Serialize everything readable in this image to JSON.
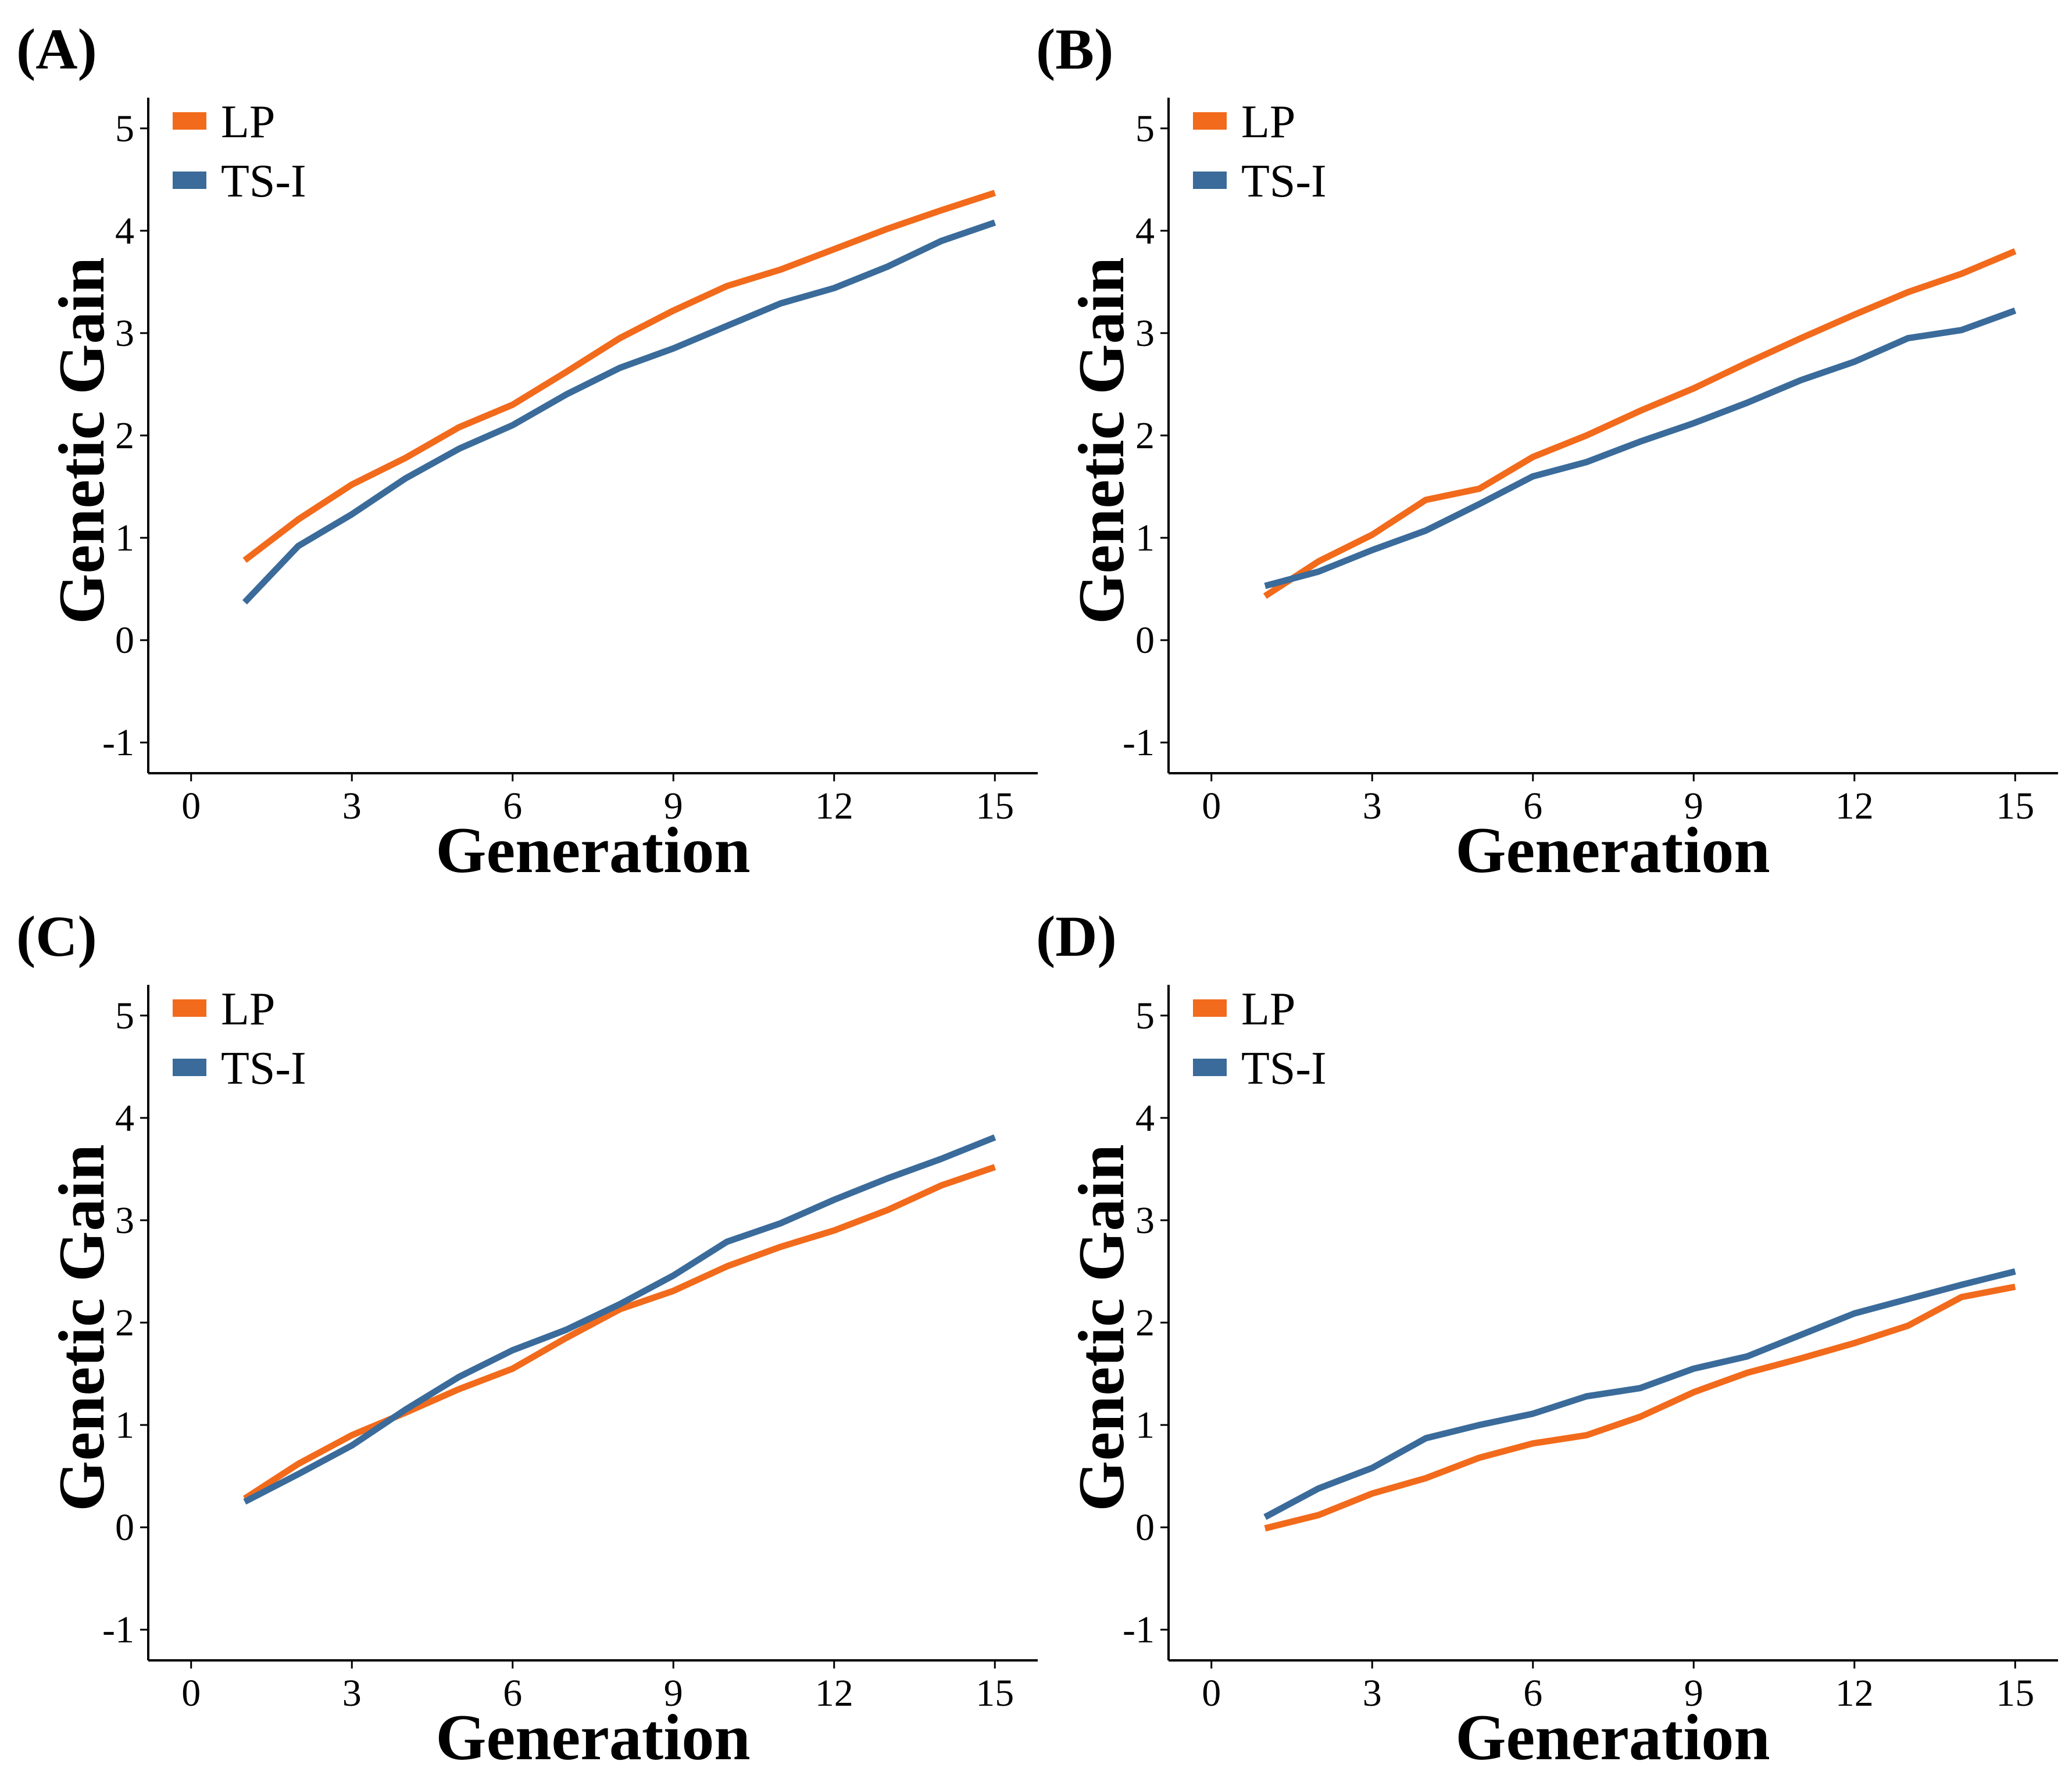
{
  "colors": {
    "LP": "#F26A1B",
    "TS-I": "#3A6B9A"
  },
  "chart_data": [
    {
      "type": "line",
      "panel_label": "(A)",
      "xlabel": "Generation",
      "ylabel": "Genetic Gain",
      "xlim": [
        -0.8,
        15.8
      ],
      "ylim": [
        -1.3,
        5.3
      ],
      "xticks": [
        0,
        3,
        6,
        9,
        12,
        15
      ],
      "xtick_labels": [
        "0",
        "3",
        "6",
        "9",
        "12",
        "15"
      ],
      "yticks": [
        -1,
        0,
        1,
        2,
        3,
        4,
        5
      ],
      "ytick_labels": [
        "-1",
        "0",
        "1",
        "2",
        "3",
        "4",
        "5"
      ],
      "legend_position": "top-left",
      "x": [
        1,
        2,
        3,
        4,
        5,
        6,
        7,
        8,
        9,
        10,
        11,
        12,
        13,
        14,
        15
      ],
      "series": [
        {
          "name": "LP",
          "values": [
            0.78,
            1.18,
            1.52,
            1.78,
            2.08,
            2.3,
            2.62,
            2.95,
            3.22,
            3.46,
            3.62,
            3.82,
            4.02,
            4.2,
            4.37
          ]
        },
        {
          "name": "TS-I",
          "values": [
            0.37,
            0.92,
            1.23,
            1.58,
            1.87,
            2.1,
            2.4,
            2.66,
            2.85,
            3.07,
            3.29,
            3.44,
            3.65,
            3.9,
            4.08
          ]
        }
      ]
    },
    {
      "type": "line",
      "panel_label": "(B)",
      "xlabel": "Generation",
      "ylabel": "Genetic Gain",
      "xlim": [
        -0.8,
        15.8
      ],
      "ylim": [
        -1.3,
        5.3
      ],
      "xticks": [
        0,
        3,
        6,
        9,
        12,
        15
      ],
      "xtick_labels": [
        "0",
        "3",
        "6",
        "9",
        "12",
        "15"
      ],
      "yticks": [
        -1,
        0,
        1,
        2,
        3,
        4,
        5
      ],
      "ytick_labels": [
        "-1",
        "0",
        "1",
        "2",
        "3",
        "4",
        "5"
      ],
      "legend_position": "top-left",
      "x": [
        1,
        2,
        3,
        4,
        5,
        6,
        7,
        8,
        9,
        10,
        11,
        12,
        13,
        14,
        15
      ],
      "series": [
        {
          "name": "LP",
          "values": [
            0.43,
            0.77,
            1.03,
            1.37,
            1.48,
            1.79,
            2.0,
            2.24,
            2.46,
            2.71,
            2.95,
            3.18,
            3.4,
            3.58,
            3.8
          ]
        },
        {
          "name": "TS-I",
          "values": [
            0.53,
            0.67,
            0.88,
            1.07,
            1.33,
            1.6,
            1.74,
            1.94,
            2.12,
            2.32,
            2.54,
            2.72,
            2.95,
            3.03,
            3.22
          ]
        }
      ]
    },
    {
      "type": "line",
      "panel_label": "(C)",
      "xlabel": "Generation",
      "ylabel": "Genetic Gain",
      "xlim": [
        -0.8,
        15.8
      ],
      "ylim": [
        -1.3,
        5.3
      ],
      "xticks": [
        0,
        3,
        6,
        9,
        12,
        15
      ],
      "xtick_labels": [
        "0",
        "3",
        "6",
        "9",
        "12",
        "15"
      ],
      "yticks": [
        -1,
        0,
        1,
        2,
        3,
        4,
        5
      ],
      "ytick_labels": [
        "-1",
        "0",
        "1",
        "2",
        "3",
        "4",
        "5"
      ],
      "legend_position": "top-left",
      "x": [
        1,
        2,
        3,
        4,
        5,
        6,
        7,
        8,
        9,
        10,
        11,
        12,
        13,
        14,
        15
      ],
      "series": [
        {
          "name": "LP",
          "values": [
            0.28,
            0.62,
            0.9,
            1.12,
            1.35,
            1.55,
            1.85,
            2.13,
            2.31,
            2.55,
            2.74,
            2.9,
            3.1,
            3.34,
            3.52
          ]
        },
        {
          "name": "TS-I",
          "values": [
            0.25,
            0.52,
            0.8,
            1.15,
            1.47,
            1.73,
            1.93,
            2.18,
            2.46,
            2.79,
            2.97,
            3.2,
            3.41,
            3.6,
            3.81
          ]
        }
      ]
    },
    {
      "type": "line",
      "panel_label": "(D)",
      "xlabel": "Generation",
      "ylabel": "Genetic Gain",
      "xlim": [
        -0.8,
        15.8
      ],
      "ylim": [
        -1.3,
        5.3
      ],
      "xticks": [
        0,
        3,
        6,
        9,
        12,
        15
      ],
      "xtick_labels": [
        "0",
        "3",
        "6",
        "9",
        "12",
        "15"
      ],
      "yticks": [
        -1,
        0,
        1,
        2,
        3,
        4,
        5
      ],
      "ytick_labels": [
        "-1",
        "0",
        "1",
        "2",
        "3",
        "4",
        "5"
      ],
      "legend_position": "top-left",
      "x": [
        1,
        2,
        3,
        4,
        5,
        6,
        7,
        8,
        9,
        10,
        11,
        12,
        13,
        14,
        15
      ],
      "series": [
        {
          "name": "LP",
          "values": [
            -0.01,
            0.12,
            0.33,
            0.48,
            0.68,
            0.82,
            0.9,
            1.08,
            1.32,
            1.51,
            1.65,
            1.8,
            1.97,
            2.25,
            2.35
          ]
        },
        {
          "name": "TS-I",
          "values": [
            0.1,
            0.38,
            0.58,
            0.87,
            1.0,
            1.11,
            1.28,
            1.36,
            1.55,
            1.67,
            1.88,
            2.09,
            2.23,
            2.37,
            2.5
          ]
        }
      ]
    }
  ]
}
